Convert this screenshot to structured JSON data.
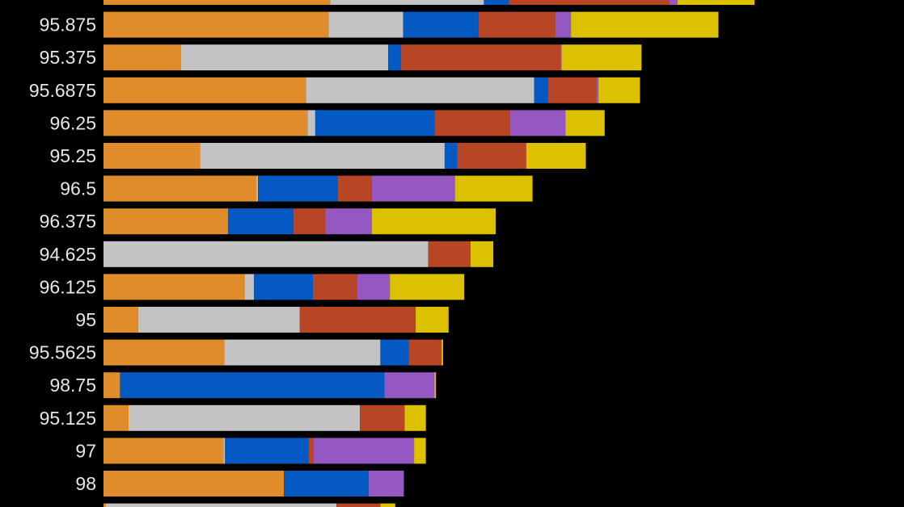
{
  "chart_data": {
    "type": "bar",
    "orientation": "horizontal",
    "stacked": true,
    "grid": false,
    "legend": "none",
    "background": "#000000",
    "categories": [
      "",
      "95.875",
      "95.375",
      "95.6875",
      "96.25",
      "95.25",
      "96.5",
      "96.375",
      "94.625",
      "96.125",
      "95",
      "95.5625",
      "98.75",
      "95.125",
      "97",
      "98",
      ""
    ],
    "x_range": [
      0,
      100
    ],
    "series": [
      {
        "color": "#e08c2a",
        "values": [
          28.9,
          28.7,
          9.9,
          25.8,
          26.0,
          12.3,
          19.5,
          15.9,
          0,
          18.0,
          4.4,
          15.4,
          2.1,
          3.2,
          15.3,
          23.0,
          0.3
        ]
      },
      {
        "color": "#c3c3c3",
        "values": [
          19.6,
          9.5,
          26.4,
          29.1,
          1.0,
          31.2,
          0.2,
          0,
          41.4,
          1.2,
          20.6,
          19.9,
          0,
          29.5,
          0.2,
          0,
          29.4
        ]
      },
      {
        "color": "#0559c2",
        "values": [
          3.2,
          9.6,
          1.6,
          1.8,
          15.2,
          1.6,
          10.2,
          8.3,
          0,
          7.5,
          0,
          3.6,
          33.7,
          0,
          10.6,
          10.8,
          0
        ]
      },
      {
        "color": "#b84624",
        "values": [
          20.4,
          9.8,
          20.4,
          6.1,
          9.6,
          8.8,
          4.3,
          4.1,
          5.4,
          5.6,
          14.8,
          4.2,
          0,
          5.7,
          0.7,
          0,
          5.6
        ]
      },
      {
        "color": "#9558c2",
        "values": [
          1.1,
          2.0,
          0.1,
          0.3,
          7.1,
          0,
          10.6,
          5.9,
          0,
          4.2,
          0,
          0,
          6.4,
          0,
          12.8,
          4.5,
          0
        ]
      },
      {
        "color": "#dcc100",
        "values": [
          9.8,
          18.8,
          10.2,
          5.3,
          5.0,
          7.6,
          9.9,
          15.8,
          2.9,
          9.5,
          4.2,
          0.2,
          0.2,
          2.7,
          1.5,
          0,
          1.9
        ]
      }
    ]
  }
}
